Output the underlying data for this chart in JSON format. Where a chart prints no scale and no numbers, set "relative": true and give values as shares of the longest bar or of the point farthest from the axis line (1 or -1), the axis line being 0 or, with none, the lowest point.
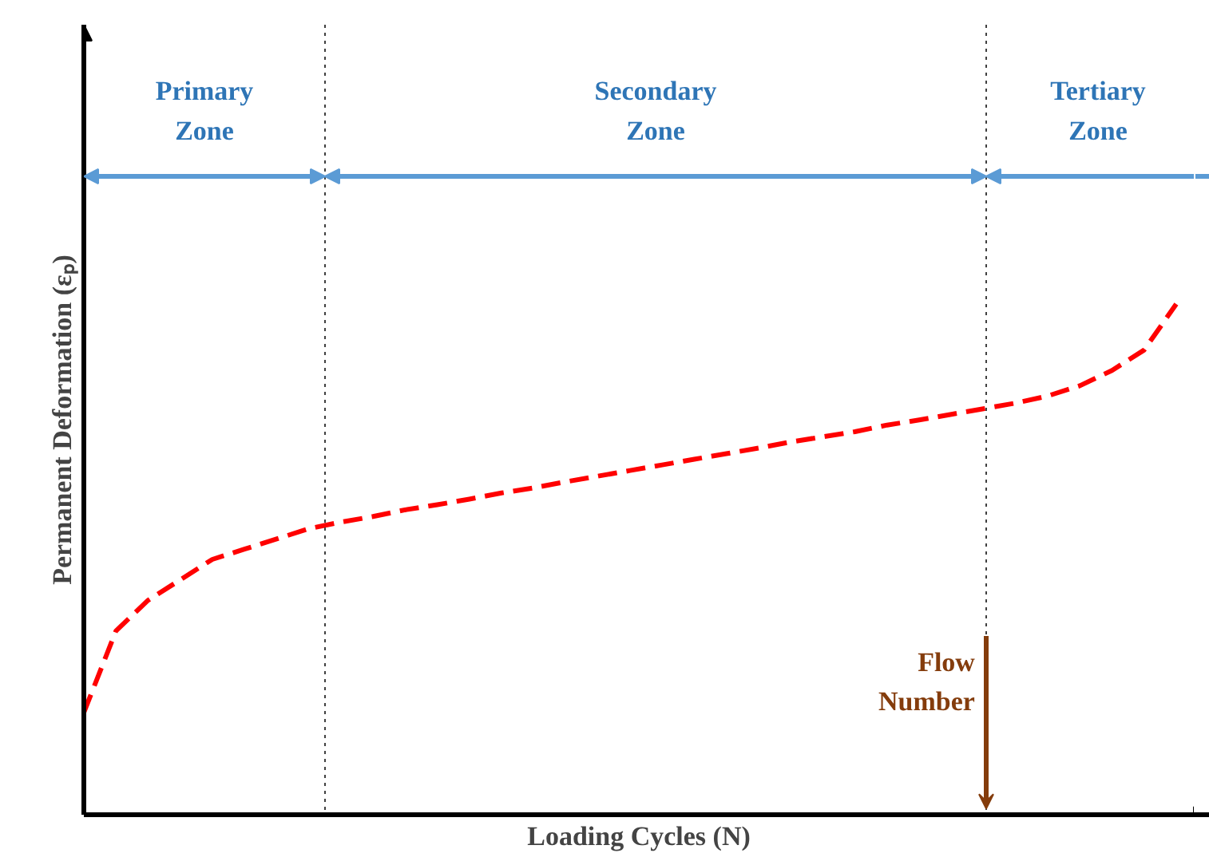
{
  "chart_data": {
    "type": "line",
    "relative": true,
    "xlabel": "Loading Cycles (N)",
    "ylabel": "Permanent Deformation (εₚ)",
    "categories": [
      null,
      null,
      null,
      null,
      null,
      null,
      null,
      null,
      null,
      null,
      null,
      null,
      null,
      null,
      null,
      null,
      null,
      null,
      null,
      null,
      null,
      null,
      null,
      null,
      null,
      null,
      null,
      null,
      null,
      null,
      null,
      null,
      null,
      null,
      null
    ],
    "series": [
      {
        "color": "#ff0000",
        "line_style": "dashed",
        "values": [
          0.2,
          0.36,
          0.42,
          0.46,
          0.5,
          0.52,
          0.54,
          0.56,
          0.573,
          0.584,
          0.597,
          0.607,
          0.618,
          0.63,
          0.64,
          0.652,
          0.663,
          0.674,
          0.685,
          0.696,
          0.707,
          0.718,
          0.73,
          0.74,
          0.75,
          0.763,
          0.773,
          0.784,
          0.795,
          0.806,
          0.82,
          0.84,
          0.87,
          0.91,
          1.0
        ]
      }
    ],
    "annotations": [
      "Primary Zone",
      "Secondary Zone",
      "Tertiary Zone",
      "Flow Number"
    ]
  }
}
